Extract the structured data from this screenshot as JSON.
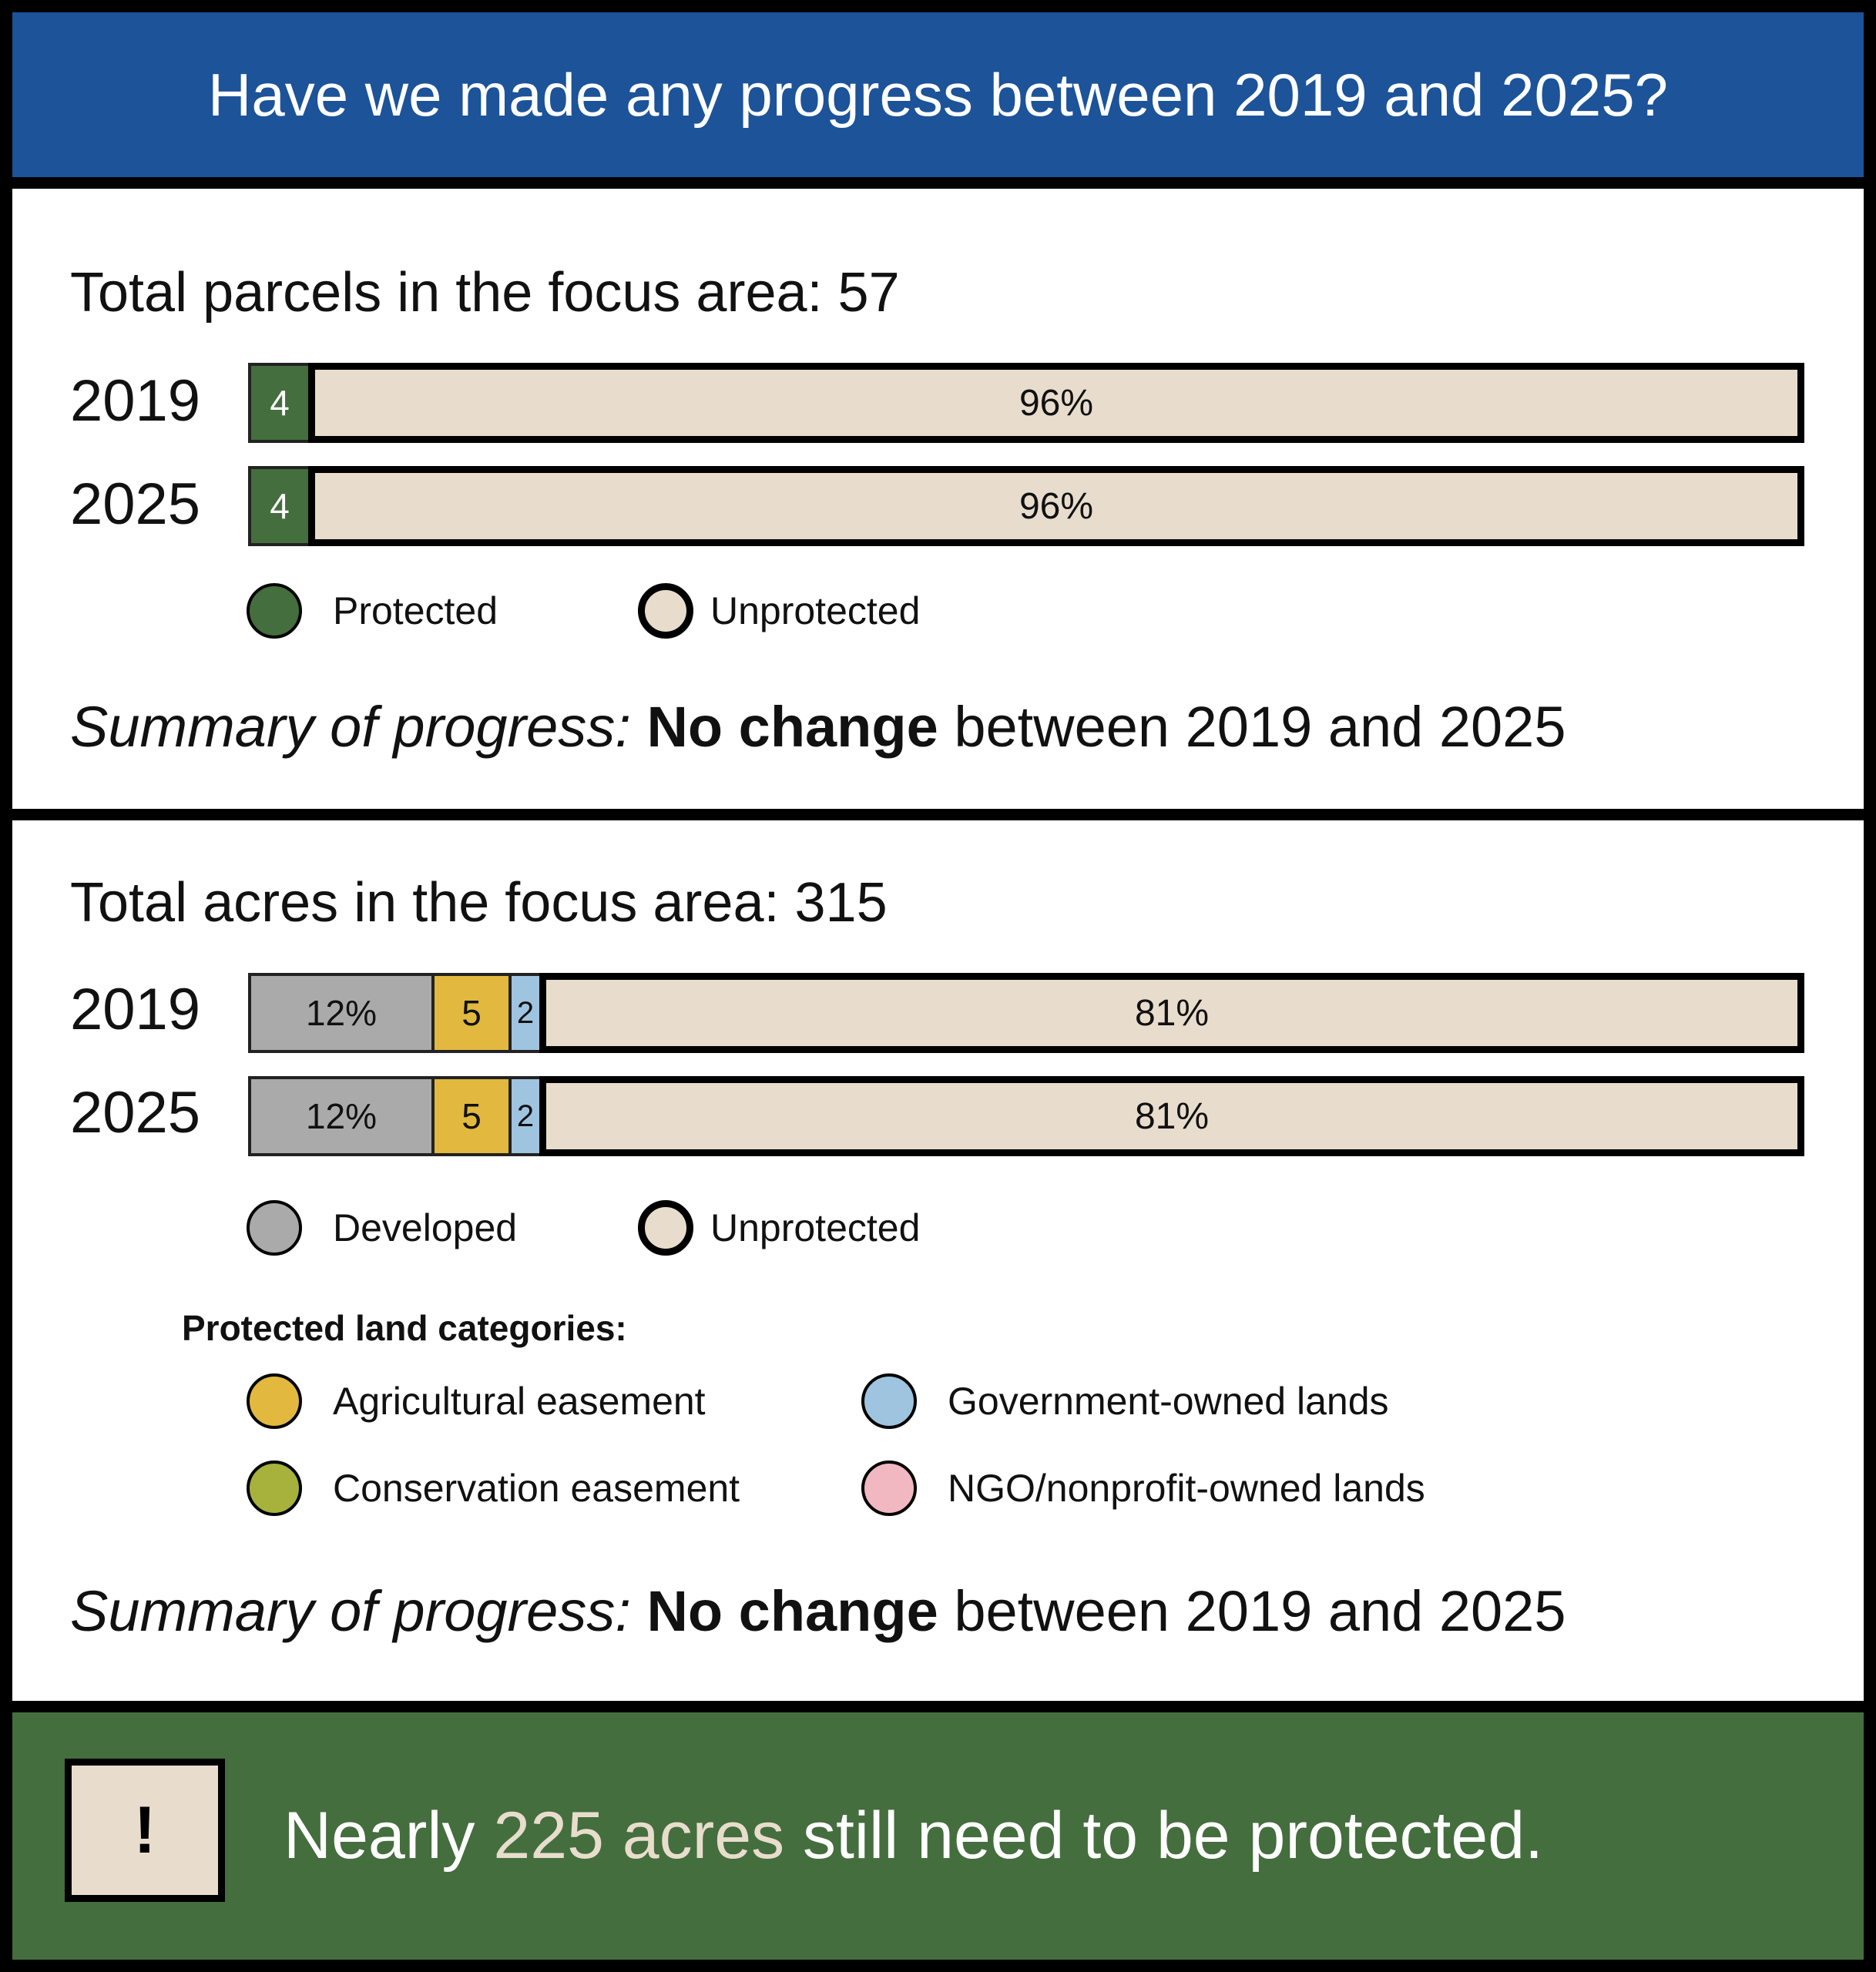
{
  "header": {
    "title": "Have we made any progress between 2019 and 2025?"
  },
  "parcels": {
    "title": "Total parcels in the focus area: 57",
    "rows": [
      {
        "year": "2019",
        "protected_label": "4",
        "unprotected_label": "96%"
      },
      {
        "year": "2025",
        "protected_label": "4",
        "unprotected_label": "96%"
      }
    ],
    "legend": {
      "protected": "Protected",
      "unprotected": "Unprotected"
    },
    "summary": {
      "prefix": "Summary of progress:",
      "emphasis": "No change",
      "rest": "between 2019 and 2025"
    }
  },
  "acres": {
    "title": "Total acres in the focus area: 315",
    "rows": [
      {
        "year": "2019",
        "developed_label": "12%",
        "agricultural_label": "5",
        "government_label": "2",
        "unprotected_label": "81%"
      },
      {
        "year": "2025",
        "developed_label": "12%",
        "agricultural_label": "5",
        "government_label": "2",
        "unprotected_label": "81%"
      }
    ],
    "legend": {
      "developed": "Developed",
      "unprotected": "Unprotected"
    },
    "protected_heading": "Protected land categories:",
    "categories": {
      "agricultural": "Agricultural easement",
      "government": "Government-owned lands",
      "conservation": "Conservation easement",
      "ngo": "NGO/nonprofit-owned lands"
    },
    "summary": {
      "prefix": "Summary of progress:",
      "emphasis": "No change",
      "rest": "between 2019 and 2025"
    }
  },
  "footer": {
    "icon_symbol": "!",
    "text_before": "Nearly",
    "highlight": "225 acres",
    "text_after": "still need to be protected."
  },
  "colors": {
    "header_blue": "#1c5399",
    "protected_green": "#446e3d",
    "unprotected_beige": "#e8ddcd",
    "developed_gray": "#aaaaaa",
    "agricultural_yellow": "#e2b93e",
    "government_blue": "#9ec4e0",
    "conservation_olive": "#a6b23c",
    "ngo_pink": "#f2b8c2"
  },
  "chart_data": [
    {
      "type": "bar",
      "stacked": true,
      "orientation": "horizontal",
      "title": "Total parcels in the focus area: 57",
      "categories": [
        "2019",
        "2025"
      ],
      "series": [
        {
          "name": "Protected",
          "values": [
            4,
            4
          ],
          "unit": "percent"
        },
        {
          "name": "Unprotected",
          "values": [
            96,
            96
          ],
          "unit": "percent"
        }
      ]
    },
    {
      "type": "bar",
      "stacked": true,
      "orientation": "horizontal",
      "title": "Total acres in the focus area: 315",
      "categories": [
        "2019",
        "2025"
      ],
      "series": [
        {
          "name": "Developed",
          "values": [
            12,
            12
          ],
          "unit": "percent"
        },
        {
          "name": "Agricultural easement",
          "values": [
            5,
            5
          ],
          "unit": "percent"
        },
        {
          "name": "Government-owned lands",
          "values": [
            2,
            2
          ],
          "unit": "percent"
        },
        {
          "name": "Unprotected",
          "values": [
            81,
            81
          ],
          "unit": "percent"
        }
      ]
    }
  ]
}
